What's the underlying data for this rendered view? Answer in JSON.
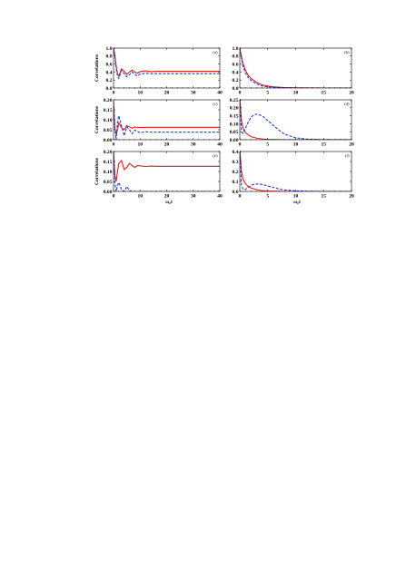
{
  "figure": {
    "xlabel": "ω₀t",
    "ylabel": "Correlations"
  },
  "chart_data": [
    {
      "id": "a",
      "panel_label": "(a)",
      "type": "line",
      "xlim": [
        0,
        40
      ],
      "ylim": [
        0,
        1.0
      ],
      "xticks": [
        0,
        10,
        20,
        30,
        40
      ],
      "yticks": [
        0.0,
        0.2,
        0.4,
        0.6,
        0.8,
        1.0
      ],
      "xlabel": "",
      "ylabel": "Correlations",
      "series": [
        {
          "color": "#e31a1c",
          "dash": "solid",
          "x": [
            0,
            0.5,
            1,
            1.5,
            2,
            3,
            4,
            5,
            6,
            7,
            8,
            9,
            10,
            12,
            14,
            16,
            20,
            25,
            30,
            35,
            40
          ],
          "y": [
            1.0,
            0.82,
            0.55,
            0.35,
            0.3,
            0.48,
            0.42,
            0.34,
            0.4,
            0.45,
            0.4,
            0.37,
            0.41,
            0.43,
            0.41,
            0.42,
            0.42,
            0.42,
            0.42,
            0.42,
            0.42
          ]
        },
        {
          "color": "#1f3fd6",
          "dash": "dashed",
          "x": [
            0,
            0.5,
            1,
            1.5,
            2,
            3,
            4,
            5,
            6,
            7,
            8,
            9,
            10,
            12,
            14,
            16,
            20,
            25,
            30,
            35,
            40
          ],
          "y": [
            1.0,
            0.8,
            0.5,
            0.3,
            0.24,
            0.44,
            0.36,
            0.28,
            0.33,
            0.4,
            0.34,
            0.3,
            0.35,
            0.37,
            0.36,
            0.36,
            0.36,
            0.36,
            0.36,
            0.36,
            0.36
          ]
        }
      ]
    },
    {
      "id": "b",
      "panel_label": "(b)",
      "type": "line",
      "xlim": [
        0,
        20
      ],
      "ylim": [
        0,
        1.0
      ],
      "xticks": [
        0,
        5,
        10,
        15,
        20
      ],
      "yticks": [
        0.0,
        0.2,
        0.4,
        0.6,
        0.8,
        1.0
      ],
      "xlabel": "",
      "ylabel": "",
      "series": [
        {
          "color": "#e31a1c",
          "dash": "solid",
          "x": [
            0,
            0.5,
            1,
            1.5,
            2,
            3,
            4,
            5,
            6,
            8,
            10,
            15,
            20
          ],
          "y": [
            1.0,
            0.65,
            0.45,
            0.32,
            0.24,
            0.14,
            0.08,
            0.05,
            0.03,
            0.01,
            0.005,
            0.0,
            0.0
          ]
        },
        {
          "color": "#1f3fd6",
          "dash": "dashed",
          "x": [
            0,
            0.5,
            1,
            1.5,
            2,
            3,
            4,
            5,
            6,
            8,
            10,
            15,
            20
          ],
          "y": [
            1.0,
            0.58,
            0.38,
            0.26,
            0.19,
            0.1,
            0.05,
            0.03,
            0.015,
            0.005,
            0.0,
            0.0,
            0.0
          ]
        }
      ]
    },
    {
      "id": "c",
      "panel_label": "(c)",
      "type": "line",
      "xlim": [
        0,
        40
      ],
      "ylim": [
        0,
        0.2
      ],
      "xticks": [
        0,
        10,
        20,
        30,
        40
      ],
      "yticks": [
        0.0,
        0.05,
        0.1,
        0.15,
        0.2
      ],
      "xlabel": "",
      "ylabel": "Correlations",
      "series": [
        {
          "color": "#e31a1c",
          "dash": "solid",
          "x": [
            0,
            0.5,
            1,
            1.5,
            2,
            3,
            4,
            5,
            6,
            7,
            8,
            9,
            10,
            12,
            14,
            16,
            20,
            25,
            30,
            35,
            40
          ],
          "y": [
            0.19,
            0.06,
            0.025,
            0.05,
            0.085,
            0.06,
            0.05,
            0.07,
            0.065,
            0.058,
            0.064,
            0.062,
            0.061,
            0.062,
            0.062,
            0.062,
            0.062,
            0.062,
            0.062,
            0.062,
            0.062
          ]
        },
        {
          "color": "#1f3fd6",
          "dash": "dashed",
          "x": [
            0,
            0.5,
            1,
            1.5,
            2,
            3,
            4,
            5,
            6,
            7,
            8,
            9,
            10,
            12,
            14,
            16,
            20,
            25,
            30,
            35,
            40
          ],
          "y": [
            0.19,
            0.05,
            0.0,
            0.09,
            0.12,
            0.07,
            0.02,
            0.065,
            0.05,
            0.03,
            0.048,
            0.042,
            0.035,
            0.04,
            0.038,
            0.038,
            0.038,
            0.038,
            0.038,
            0.038,
            0.038
          ]
        }
      ]
    },
    {
      "id": "d",
      "panel_label": "(d)",
      "type": "line",
      "xlim": [
        0,
        20
      ],
      "ylim": [
        0,
        0.25
      ],
      "xticks": [
        0,
        5,
        10,
        15,
        20
      ],
      "yticks": [
        0.0,
        0.05,
        0.1,
        0.15,
        0.2,
        0.25
      ],
      "xlabel": "",
      "ylabel": "",
      "series": [
        {
          "color": "#e31a1c",
          "dash": "solid",
          "x": [
            0,
            0.3,
            0.6,
            1,
            1.5,
            2,
            3,
            4,
            5,
            6,
            8,
            10,
            15,
            20
          ],
          "y": [
            0.26,
            0.12,
            0.07,
            0.045,
            0.03,
            0.02,
            0.01,
            0.005,
            0.002,
            0.001,
            0.0,
            0.0,
            0.0,
            0.0
          ]
        },
        {
          "color": "#1f3fd6",
          "dash": "dashed",
          "x": [
            0,
            0.3,
            0.6,
            1,
            1.5,
            2,
            2.5,
            3,
            4,
            5,
            6,
            7,
            8,
            10,
            12,
            15,
            20
          ],
          "y": [
            0.26,
            0.05,
            0.04,
            0.07,
            0.11,
            0.14,
            0.155,
            0.16,
            0.15,
            0.12,
            0.09,
            0.06,
            0.035,
            0.012,
            0.004,
            0.001,
            0.0
          ]
        }
      ]
    },
    {
      "id": "e",
      "panel_label": "(e)",
      "type": "line",
      "xlim": [
        0,
        40
      ],
      "ylim": [
        0,
        0.2
      ],
      "xticks": [
        0,
        10,
        20,
        30,
        40
      ],
      "yticks": [
        0.0,
        0.05,
        0.1,
        0.15,
        0.2
      ],
      "xlabel": "ω₀t",
      "ylabel": "Correlations",
      "series": [
        {
          "color": "#e31a1c",
          "dash": "solid",
          "x": [
            0,
            0.5,
            1,
            1.5,
            2,
            3,
            4,
            5,
            6,
            7,
            8,
            9,
            10,
            12,
            14,
            16,
            20,
            25,
            30,
            35,
            40
          ],
          "y": [
            0.2,
            0.08,
            0.05,
            0.1,
            0.14,
            0.155,
            0.11,
            0.12,
            0.14,
            0.13,
            0.12,
            0.13,
            0.128,
            0.125,
            0.127,
            0.126,
            0.126,
            0.126,
            0.126,
            0.126,
            0.126
          ]
        },
        {
          "color": "#1f3fd6",
          "dash": "dashed",
          "x": [
            0,
            0.5,
            1,
            1.5,
            2,
            3,
            4,
            5,
            6,
            7,
            8,
            10,
            15,
            20,
            25,
            30,
            35,
            40
          ],
          "y": [
            0.2,
            0.04,
            0.0,
            0.03,
            0.045,
            0.01,
            0.0,
            0.025,
            0.005,
            0.0,
            0.0,
            0.0,
            0.0,
            0.0,
            0.0,
            0.0,
            0.0,
            0.0
          ]
        }
      ]
    },
    {
      "id": "f",
      "panel_label": "(f)",
      "type": "line",
      "xlim": [
        0,
        20
      ],
      "ylim": [
        0,
        0.4
      ],
      "xticks": [
        0,
        5,
        10,
        15,
        20
      ],
      "yticks": [
        0.0,
        0.1,
        0.2,
        0.3,
        0.4
      ],
      "xlabel": "ω₀t",
      "ylabel": "",
      "series": [
        {
          "color": "#e31a1c",
          "dash": "solid",
          "x": [
            0,
            0.3,
            0.6,
            1,
            1.5,
            2,
            3,
            4,
            5,
            6,
            8,
            10,
            15,
            20
          ],
          "y": [
            0.42,
            0.2,
            0.12,
            0.08,
            0.05,
            0.035,
            0.018,
            0.008,
            0.004,
            0.002,
            0.0,
            0.0,
            0.0,
            0.0
          ]
        },
        {
          "color": "#1f3fd6",
          "dash": "dashed",
          "x": [
            0,
            0.3,
            0.6,
            1,
            1.5,
            2,
            2.5,
            3,
            4,
            5,
            6,
            7,
            8,
            10,
            12,
            15,
            20
          ],
          "y": [
            0.42,
            0.06,
            0.02,
            0.02,
            0.04,
            0.06,
            0.07,
            0.075,
            0.07,
            0.055,
            0.04,
            0.025,
            0.015,
            0.005,
            0.002,
            0.0,
            0.0
          ]
        }
      ]
    }
  ]
}
